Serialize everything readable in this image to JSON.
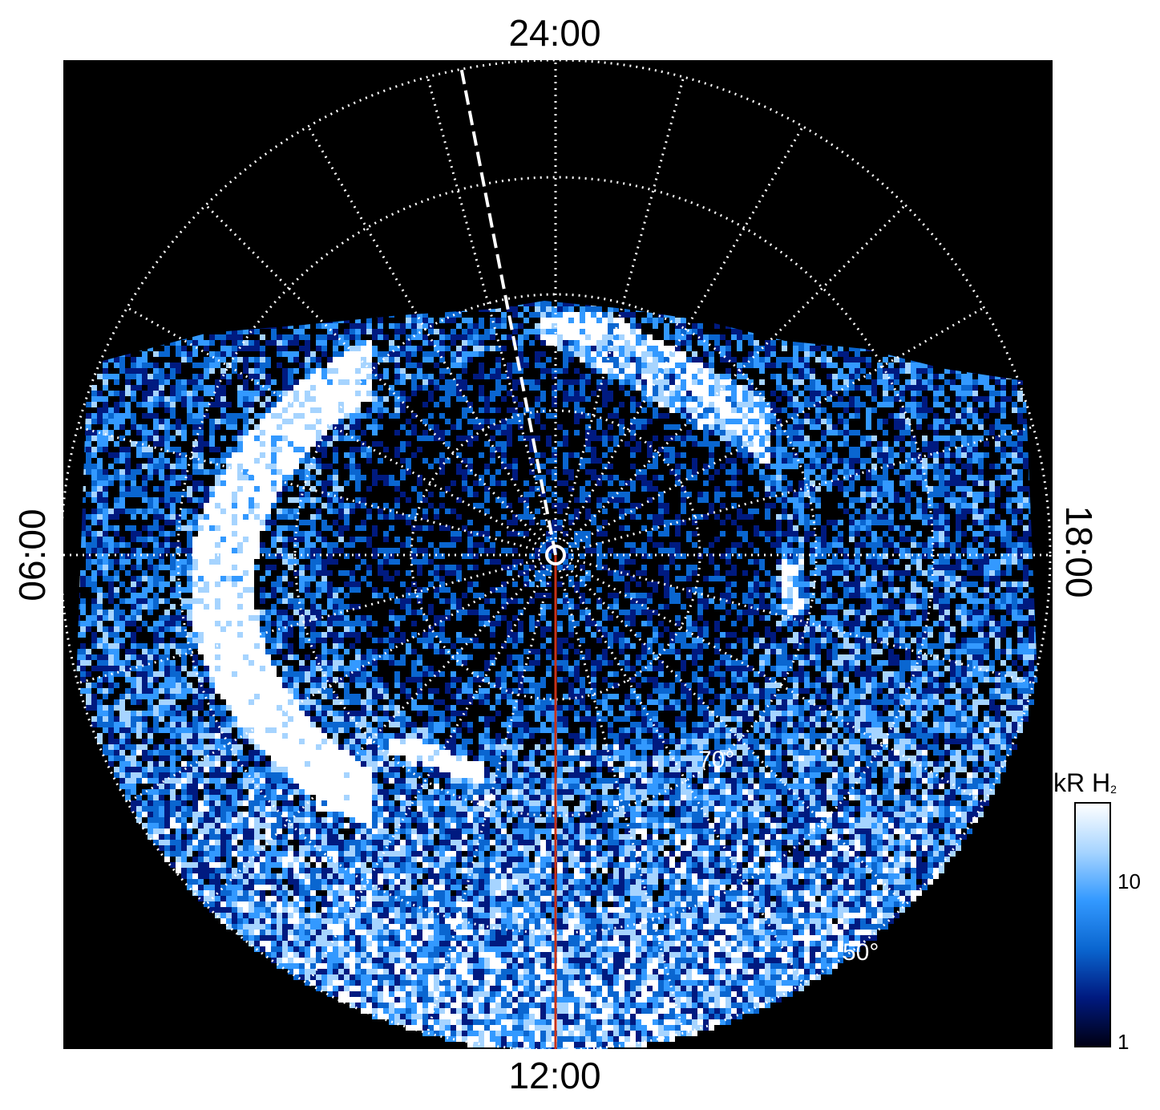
{
  "figure": {
    "local_time_labels": {
      "top": "24:00",
      "bottom": "12:00",
      "left": "06:00",
      "right": "18:00"
    },
    "latitude_labels": [
      "70°",
      "50°"
    ],
    "colorbar": {
      "unit_main": "kR H",
      "unit_sub": "2",
      "tick_labels": [
        "10",
        "1"
      ],
      "colors": [
        "#000014",
        "#001a80",
        "#0a66d0",
        "#3399ff",
        "#a6d4ff",
        "#ffffff"
      ],
      "scale": "log"
    },
    "colors": {
      "background": "#000000",
      "grid": "#ffffff",
      "noon_meridian": "#c83218",
      "emission_bright": "#ffffff",
      "emission_mid": "#3399ff",
      "emission_low": "#001a80"
    }
  }
}
